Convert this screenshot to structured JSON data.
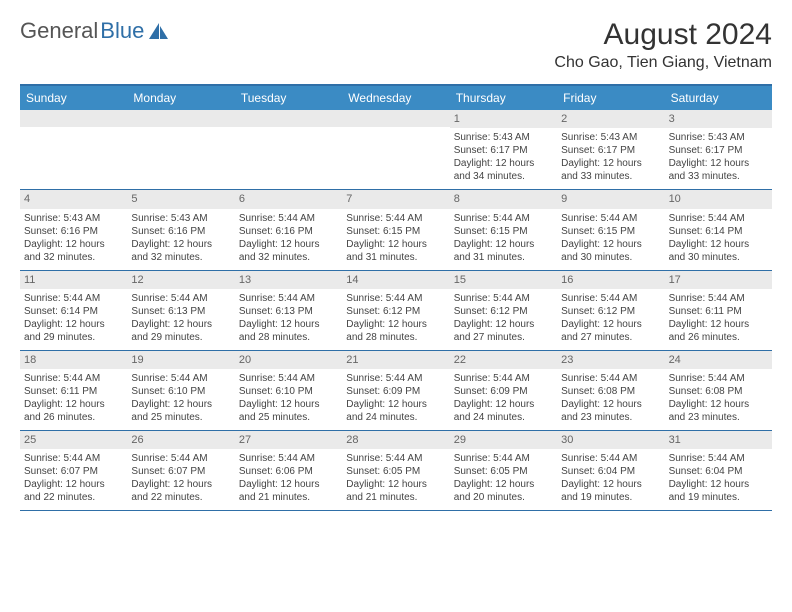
{
  "logo": {
    "part1": "General",
    "part2": "Blue"
  },
  "title": "August 2024",
  "location": "Cho Gao, Tien Giang, Vietnam",
  "brand_color": "#3b8bc4",
  "border_color": "#2f6fa7",
  "daynum_bg": "#eaeaea",
  "day_names": [
    "Sunday",
    "Monday",
    "Tuesday",
    "Wednesday",
    "Thursday",
    "Friday",
    "Saturday"
  ],
  "weeks": [
    [
      {
        "empty": true
      },
      {
        "empty": true
      },
      {
        "empty": true
      },
      {
        "empty": true
      },
      {
        "day": "1",
        "sunrise": "Sunrise: 5:43 AM",
        "sunset": "Sunset: 6:17 PM",
        "daylight": "Daylight: 12 hours and 34 minutes."
      },
      {
        "day": "2",
        "sunrise": "Sunrise: 5:43 AM",
        "sunset": "Sunset: 6:17 PM",
        "daylight": "Daylight: 12 hours and 33 minutes."
      },
      {
        "day": "3",
        "sunrise": "Sunrise: 5:43 AM",
        "sunset": "Sunset: 6:17 PM",
        "daylight": "Daylight: 12 hours and 33 minutes."
      }
    ],
    [
      {
        "day": "4",
        "sunrise": "Sunrise: 5:43 AM",
        "sunset": "Sunset: 6:16 PM",
        "daylight": "Daylight: 12 hours and 32 minutes."
      },
      {
        "day": "5",
        "sunrise": "Sunrise: 5:43 AM",
        "sunset": "Sunset: 6:16 PM",
        "daylight": "Daylight: 12 hours and 32 minutes."
      },
      {
        "day": "6",
        "sunrise": "Sunrise: 5:44 AM",
        "sunset": "Sunset: 6:16 PM",
        "daylight": "Daylight: 12 hours and 32 minutes."
      },
      {
        "day": "7",
        "sunrise": "Sunrise: 5:44 AM",
        "sunset": "Sunset: 6:15 PM",
        "daylight": "Daylight: 12 hours and 31 minutes."
      },
      {
        "day": "8",
        "sunrise": "Sunrise: 5:44 AM",
        "sunset": "Sunset: 6:15 PM",
        "daylight": "Daylight: 12 hours and 31 minutes."
      },
      {
        "day": "9",
        "sunrise": "Sunrise: 5:44 AM",
        "sunset": "Sunset: 6:15 PM",
        "daylight": "Daylight: 12 hours and 30 minutes."
      },
      {
        "day": "10",
        "sunrise": "Sunrise: 5:44 AM",
        "sunset": "Sunset: 6:14 PM",
        "daylight": "Daylight: 12 hours and 30 minutes."
      }
    ],
    [
      {
        "day": "11",
        "sunrise": "Sunrise: 5:44 AM",
        "sunset": "Sunset: 6:14 PM",
        "daylight": "Daylight: 12 hours and 29 minutes."
      },
      {
        "day": "12",
        "sunrise": "Sunrise: 5:44 AM",
        "sunset": "Sunset: 6:13 PM",
        "daylight": "Daylight: 12 hours and 29 minutes."
      },
      {
        "day": "13",
        "sunrise": "Sunrise: 5:44 AM",
        "sunset": "Sunset: 6:13 PM",
        "daylight": "Daylight: 12 hours and 28 minutes."
      },
      {
        "day": "14",
        "sunrise": "Sunrise: 5:44 AM",
        "sunset": "Sunset: 6:12 PM",
        "daylight": "Daylight: 12 hours and 28 minutes."
      },
      {
        "day": "15",
        "sunrise": "Sunrise: 5:44 AM",
        "sunset": "Sunset: 6:12 PM",
        "daylight": "Daylight: 12 hours and 27 minutes."
      },
      {
        "day": "16",
        "sunrise": "Sunrise: 5:44 AM",
        "sunset": "Sunset: 6:12 PM",
        "daylight": "Daylight: 12 hours and 27 minutes."
      },
      {
        "day": "17",
        "sunrise": "Sunrise: 5:44 AM",
        "sunset": "Sunset: 6:11 PM",
        "daylight": "Daylight: 12 hours and 26 minutes."
      }
    ],
    [
      {
        "day": "18",
        "sunrise": "Sunrise: 5:44 AM",
        "sunset": "Sunset: 6:11 PM",
        "daylight": "Daylight: 12 hours and 26 minutes."
      },
      {
        "day": "19",
        "sunrise": "Sunrise: 5:44 AM",
        "sunset": "Sunset: 6:10 PM",
        "daylight": "Daylight: 12 hours and 25 minutes."
      },
      {
        "day": "20",
        "sunrise": "Sunrise: 5:44 AM",
        "sunset": "Sunset: 6:10 PM",
        "daylight": "Daylight: 12 hours and 25 minutes."
      },
      {
        "day": "21",
        "sunrise": "Sunrise: 5:44 AM",
        "sunset": "Sunset: 6:09 PM",
        "daylight": "Daylight: 12 hours and 24 minutes."
      },
      {
        "day": "22",
        "sunrise": "Sunrise: 5:44 AM",
        "sunset": "Sunset: 6:09 PM",
        "daylight": "Daylight: 12 hours and 24 minutes."
      },
      {
        "day": "23",
        "sunrise": "Sunrise: 5:44 AM",
        "sunset": "Sunset: 6:08 PM",
        "daylight": "Daylight: 12 hours and 23 minutes."
      },
      {
        "day": "24",
        "sunrise": "Sunrise: 5:44 AM",
        "sunset": "Sunset: 6:08 PM",
        "daylight": "Daylight: 12 hours and 23 minutes."
      }
    ],
    [
      {
        "day": "25",
        "sunrise": "Sunrise: 5:44 AM",
        "sunset": "Sunset: 6:07 PM",
        "daylight": "Daylight: 12 hours and 22 minutes."
      },
      {
        "day": "26",
        "sunrise": "Sunrise: 5:44 AM",
        "sunset": "Sunset: 6:07 PM",
        "daylight": "Daylight: 12 hours and 22 minutes."
      },
      {
        "day": "27",
        "sunrise": "Sunrise: 5:44 AM",
        "sunset": "Sunset: 6:06 PM",
        "daylight": "Daylight: 12 hours and 21 minutes."
      },
      {
        "day": "28",
        "sunrise": "Sunrise: 5:44 AM",
        "sunset": "Sunset: 6:05 PM",
        "daylight": "Daylight: 12 hours and 21 minutes."
      },
      {
        "day": "29",
        "sunrise": "Sunrise: 5:44 AM",
        "sunset": "Sunset: 6:05 PM",
        "daylight": "Daylight: 12 hours and 20 minutes."
      },
      {
        "day": "30",
        "sunrise": "Sunrise: 5:44 AM",
        "sunset": "Sunset: 6:04 PM",
        "daylight": "Daylight: 12 hours and 19 minutes."
      },
      {
        "day": "31",
        "sunrise": "Sunrise: 5:44 AM",
        "sunset": "Sunset: 6:04 PM",
        "daylight": "Daylight: 12 hours and 19 minutes."
      }
    ]
  ]
}
